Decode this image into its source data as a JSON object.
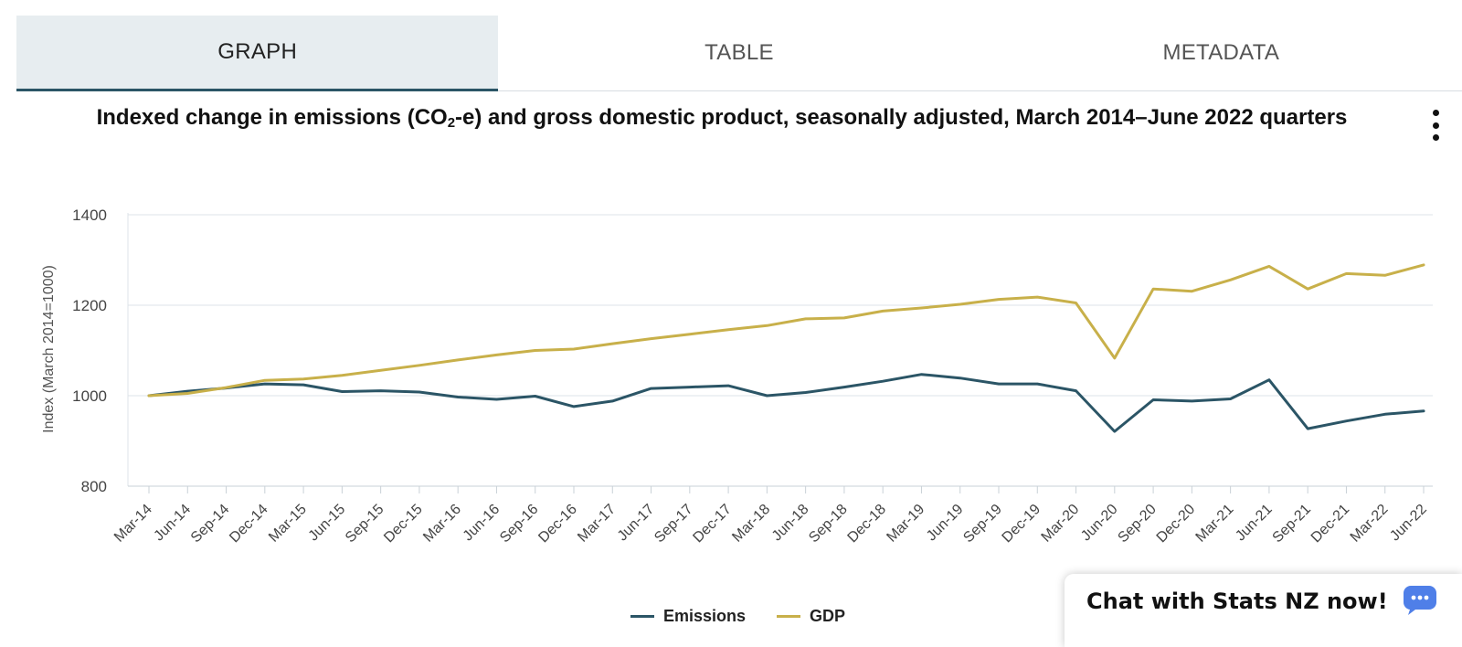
{
  "tabs": [
    {
      "label": "GRAPH",
      "active": true
    },
    {
      "label": "TABLE",
      "active": false
    },
    {
      "label": "METADATA",
      "active": false
    }
  ],
  "title": {
    "before_sub": "Indexed change in emissions (CO",
    "sub": "2",
    "after_sub": "-e) and gross domestic product, seasonally adjusted, March 2014–June 2022 quarters"
  },
  "menu_icon": "vertical-ellipsis-icon",
  "chart_data": {
    "type": "line",
    "title": "Indexed change in emissions (CO2-e) and gross domestic product, seasonally adjusted, March 2014–June 2022 quarters",
    "xlabel": "",
    "ylabel": "Index (March 2014=1000)",
    "ylim": [
      800,
      1400
    ],
    "yticks": [
      "800",
      "1000",
      "1200",
      "1400"
    ],
    "grid": true,
    "legend_position": "bottom",
    "categories": [
      "Mar-14",
      "Jun-14",
      "Sep-14",
      "Dec-14",
      "Mar-15",
      "Jun-15",
      "Sep-15",
      "Dec-15",
      "Mar-16",
      "Jun-16",
      "Sep-16",
      "Dec-16",
      "Mar-17",
      "Jun-17",
      "Sep-17",
      "Dec-17",
      "Mar-18",
      "Jun-18",
      "Sep-18",
      "Dec-18",
      "Mar-19",
      "Jun-19",
      "Sep-19",
      "Dec-19",
      "Mar-20",
      "Jun-20",
      "Sep-20",
      "Dec-20",
      "Mar-21",
      "Jun-21",
      "Sep-21",
      "Dec-21",
      "Mar-22",
      "Jun-22"
    ],
    "series": [
      {
        "name": "Emissions",
        "color": "#2b5566",
        "values": [
          1000,
          1010,
          1017,
          1026,
          1024,
          1009,
          1011,
          1008,
          997,
          992,
          999,
          976,
          988,
          1016,
          1019,
          1022,
          1000,
          1007,
          1019,
          1032,
          1047,
          1039,
          1026,
          1026,
          1011,
          921,
          991,
          988,
          993,
          1035,
          927,
          944,
          959,
          966
        ]
      },
      {
        "name": "GDP",
        "color": "#c8b04a",
        "values": [
          1000,
          1005,
          1018,
          1034,
          1037,
          1045,
          1056,
          1067,
          1079,
          1090,
          1100,
          1103,
          1115,
          1126,
          1136,
          1146,
          1155,
          1170,
          1172,
          1187,
          1194,
          1202,
          1213,
          1218,
          1205,
          1083,
          1236,
          1231,
          1256,
          1286,
          1236,
          1270,
          1266,
          1289
        ]
      }
    ]
  },
  "chat": {
    "label": "Chat with Stats NZ now!",
    "icon": "chat-bubble-icon",
    "color": "#4f7fe8"
  }
}
